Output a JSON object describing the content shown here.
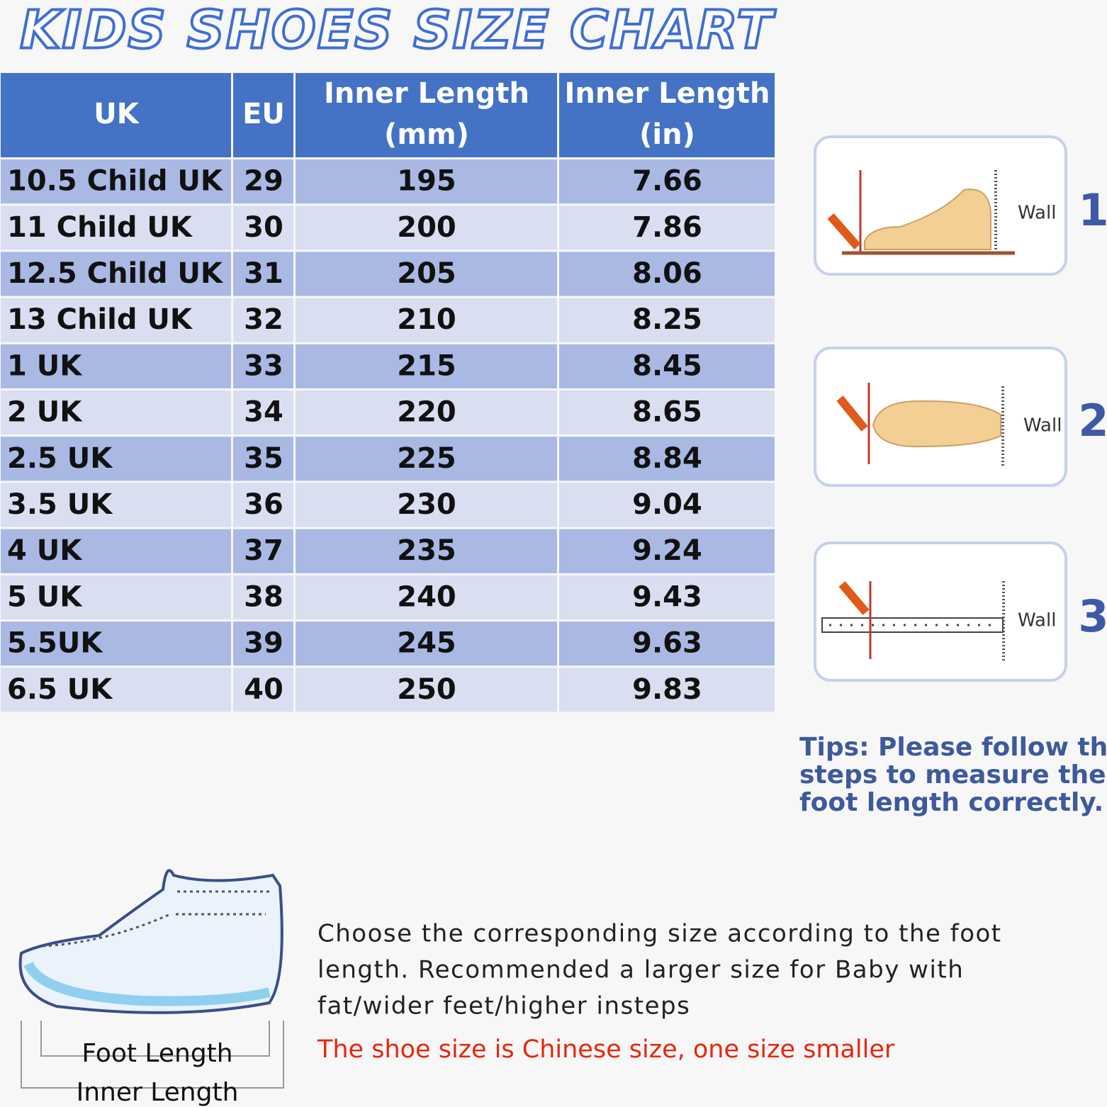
{
  "title": "KIDS SHOES SIZE CHART",
  "table": {
    "header": [
      "UK",
      "EU",
      [
        "Inner Length",
        "(mm)"
      ],
      [
        "Inner Length",
        "(in)"
      ]
    ],
    "rows": [
      [
        "10.5 Child UK",
        "29",
        "195",
        "7.66"
      ],
      [
        "11 Child UK",
        "30",
        "200",
        "7.86"
      ],
      [
        "12.5 Child UK",
        "31",
        "205",
        "8.06"
      ],
      [
        "13 Child UK",
        "32",
        "210",
        "8.25"
      ],
      [
        "1 UK",
        "33",
        "215",
        "8.45"
      ],
      [
        "2 UK",
        "34",
        "220",
        "8.65"
      ],
      [
        "2.5 UK",
        "35",
        "225",
        "8.84"
      ],
      [
        "3.5 UK",
        "36",
        "230",
        "9.04"
      ],
      [
        "4 UK",
        "37",
        "235",
        "9.24"
      ],
      [
        "5 UK",
        "38",
        "240",
        "9.43"
      ],
      [
        "5.5UK",
        "39",
        "245",
        "9.63"
      ],
      [
        "6.5 UK",
        "40",
        "250",
        "9.83"
      ]
    ]
  },
  "steps": [
    {
      "wall": "Wall",
      "number": "1"
    },
    {
      "wall": "Wall",
      "number": "2"
    },
    {
      "wall": "Wall",
      "number": "3"
    }
  ],
  "tips": [
    "Tips: Please follow the",
    "steps to measure the",
    "foot length correctly."
  ],
  "shoe": {
    "foot_length": "Foot Length",
    "inner_length": "Inner Length"
  },
  "description": [
    "Choose the corresponding size according to the foot",
    "length. Recommended a larger size for Baby with",
    "fat/wider feet/higher insteps"
  ],
  "note": "The shoe size is Chinese size, one size smaller"
}
